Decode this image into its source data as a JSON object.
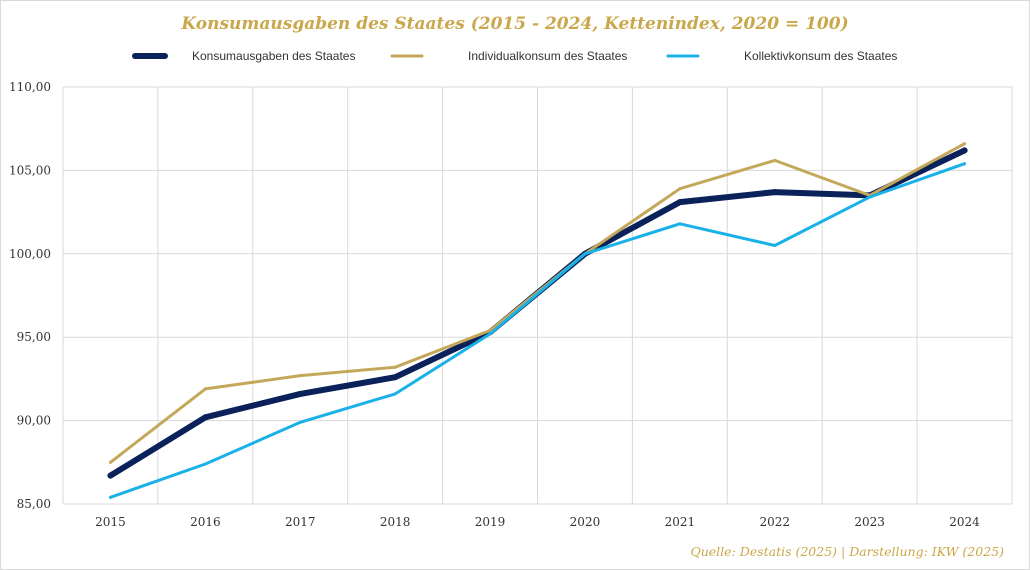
{
  "chart_data": {
    "type": "line",
    "title": "Konsumausgaben des Staates (2015 - 2024, Kettenindex, 2020 = 100)",
    "categories": [
      "2015",
      "2016",
      "2017",
      "2018",
      "2019",
      "2020",
      "2021",
      "2022",
      "2023",
      "2024"
    ],
    "ylim": [
      85,
      110
    ],
    "yticks": [
      "85,00",
      "90,00",
      "95,00",
      "100,00",
      "105,00",
      "110,00"
    ],
    "ytick_values": [
      85,
      90,
      95,
      100,
      105,
      110
    ],
    "grid": true,
    "legend_position": "top",
    "series": [
      {
        "name": "Konsumausgaben des Staates",
        "color": "#0a2159",
        "values": [
          86.7,
          90.2,
          91.6,
          92.6,
          95.3,
          100.0,
          103.1,
          103.7,
          103.5,
          106.2
        ]
      },
      {
        "name": "Individualkonsum des Staates",
        "color": "#c4a85a",
        "values": [
          87.5,
          91.9,
          92.7,
          93.2,
          95.4,
          100.0,
          103.9,
          105.6,
          103.5,
          106.6
        ]
      },
      {
        "name": "Kollektivkonsum des Staates",
        "color": "#1ab0e8",
        "values": [
          85.4,
          87.4,
          89.9,
          91.6,
          95.2,
          100.0,
          101.8,
          100.5,
          103.4,
          105.4
        ]
      }
    ]
  },
  "source": "Quelle: Destatis (2025) | Darstellung: IKW (2025)"
}
